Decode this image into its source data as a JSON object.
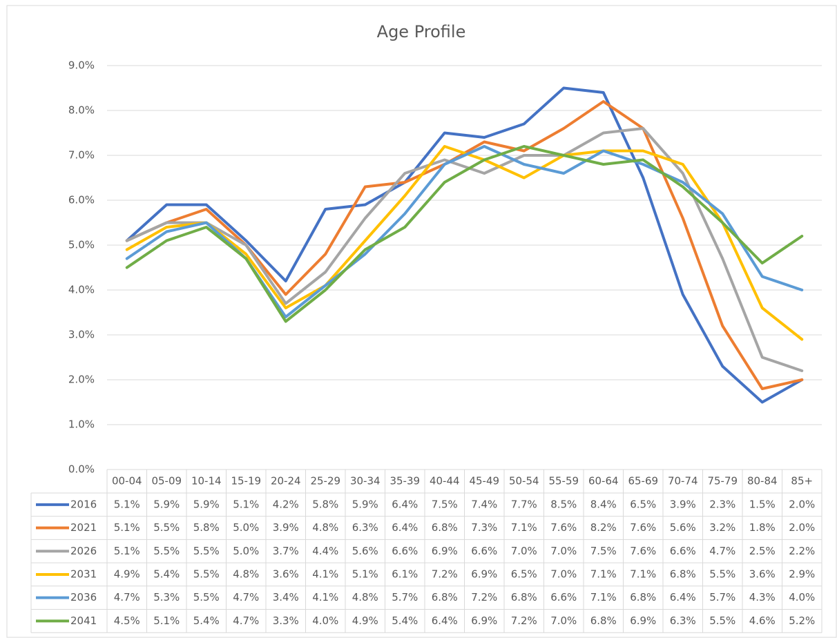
{
  "chart_data": {
    "type": "line",
    "title": "Age Profile",
    "categories": [
      "00-04",
      "05-09",
      "10-14",
      "15-19",
      "20-24",
      "25-29",
      "30-34",
      "35-39",
      "40-44",
      "45-49",
      "50-54",
      "55-59",
      "60-64",
      "65-69",
      "70-74",
      "75-79",
      "80-84",
      "85+"
    ],
    "ylim": [
      0,
      9
    ],
    "yticks": [
      {
        "value": 0,
        "label": "0.0%"
      },
      {
        "value": 1,
        "label": "1.0%"
      },
      {
        "value": 2,
        "label": "2.0%"
      },
      {
        "value": 3,
        "label": "3.0%"
      },
      {
        "value": 4,
        "label": "4.0%"
      },
      {
        "value": 5,
        "label": "5.0%"
      },
      {
        "value": 6,
        "label": "6.0%"
      },
      {
        "value": 7,
        "label": "7.0%"
      },
      {
        "value": 8,
        "label": "8.0%"
      },
      {
        "value": 9,
        "label": "9.0%"
      }
    ],
    "grid": true,
    "series": [
      {
        "name": "2016",
        "color": "#4472c4",
        "values": [
          5.1,
          5.9,
          5.9,
          5.1,
          4.2,
          5.8,
          5.9,
          6.4,
          7.5,
          7.4,
          7.7,
          8.5,
          8.4,
          6.5,
          3.9,
          2.3,
          1.5,
          2.0
        ],
        "value_labels": [
          "5.1%",
          "5.9%",
          "5.9%",
          "5.1%",
          "4.2%",
          "5.8%",
          "5.9%",
          "6.4%",
          "7.5%",
          "7.4%",
          "7.7%",
          "8.5%",
          "8.4%",
          "6.5%",
          "3.9%",
          "2.3%",
          "1.5%",
          "2.0%"
        ]
      },
      {
        "name": "2021",
        "color": "#ed7d31",
        "values": [
          5.1,
          5.5,
          5.8,
          5.0,
          3.9,
          4.8,
          6.3,
          6.4,
          6.8,
          7.3,
          7.1,
          7.6,
          8.2,
          7.6,
          5.6,
          3.2,
          1.8,
          2.0
        ],
        "value_labels": [
          "5.1%",
          "5.5%",
          "5.8%",
          "5.0%",
          "3.9%",
          "4.8%",
          "6.3%",
          "6.4%",
          "6.8%",
          "7.3%",
          "7.1%",
          "7.6%",
          "8.2%",
          "7.6%",
          "5.6%",
          "3.2%",
          "1.8%",
          "2.0%"
        ]
      },
      {
        "name": "2026",
        "color": "#a5a5a5",
        "values": [
          5.1,
          5.5,
          5.5,
          5.0,
          3.7,
          4.4,
          5.6,
          6.6,
          6.9,
          6.6,
          7.0,
          7.0,
          7.5,
          7.6,
          6.6,
          4.7,
          2.5,
          2.2
        ],
        "value_labels": [
          "5.1%",
          "5.5%",
          "5.5%",
          "5.0%",
          "3.7%",
          "4.4%",
          "5.6%",
          "6.6%",
          "6.9%",
          "6.6%",
          "7.0%",
          "7.0%",
          "7.5%",
          "7.6%",
          "6.6%",
          "4.7%",
          "2.5%",
          "2.2%"
        ]
      },
      {
        "name": "2031",
        "color": "#ffc000",
        "values": [
          4.9,
          5.4,
          5.5,
          4.8,
          3.6,
          4.1,
          5.1,
          6.1,
          7.2,
          6.9,
          6.5,
          7.0,
          7.1,
          7.1,
          6.8,
          5.5,
          3.6,
          2.9
        ],
        "value_labels": [
          "4.9%",
          "5.4%",
          "5.5%",
          "4.8%",
          "3.6%",
          "4.1%",
          "5.1%",
          "6.1%",
          "7.2%",
          "6.9%",
          "6.5%",
          "7.0%",
          "7.1%",
          "7.1%",
          "6.8%",
          "5.5%",
          "3.6%",
          "2.9%"
        ]
      },
      {
        "name": "2036",
        "color": "#5b9bd5",
        "values": [
          4.7,
          5.3,
          5.5,
          4.7,
          3.4,
          4.1,
          4.8,
          5.7,
          6.8,
          7.2,
          6.8,
          6.6,
          7.1,
          6.8,
          6.4,
          5.7,
          4.3,
          4.0
        ],
        "value_labels": [
          "4.7%",
          "5.3%",
          "5.5%",
          "4.7%",
          "3.4%",
          "4.1%",
          "4.8%",
          "5.7%",
          "6.8%",
          "7.2%",
          "6.8%",
          "6.6%",
          "7.1%",
          "6.8%",
          "6.4%",
          "5.7%",
          "4.3%",
          "4.0%"
        ]
      },
      {
        "name": "2041",
        "color": "#70ad47",
        "values": [
          4.5,
          5.1,
          5.4,
          4.7,
          3.3,
          4.0,
          4.9,
          5.4,
          6.4,
          6.9,
          7.2,
          7.0,
          6.8,
          6.9,
          6.3,
          5.5,
          4.6,
          5.2
        ],
        "value_labels": [
          "4.5%",
          "5.1%",
          "5.4%",
          "4.7%",
          "3.3%",
          "4.0%",
          "4.9%",
          "5.4%",
          "6.4%",
          "6.9%",
          "7.2%",
          "7.0%",
          "6.8%",
          "6.9%",
          "6.3%",
          "5.5%",
          "4.6%",
          "5.2%"
        ]
      }
    ]
  }
}
